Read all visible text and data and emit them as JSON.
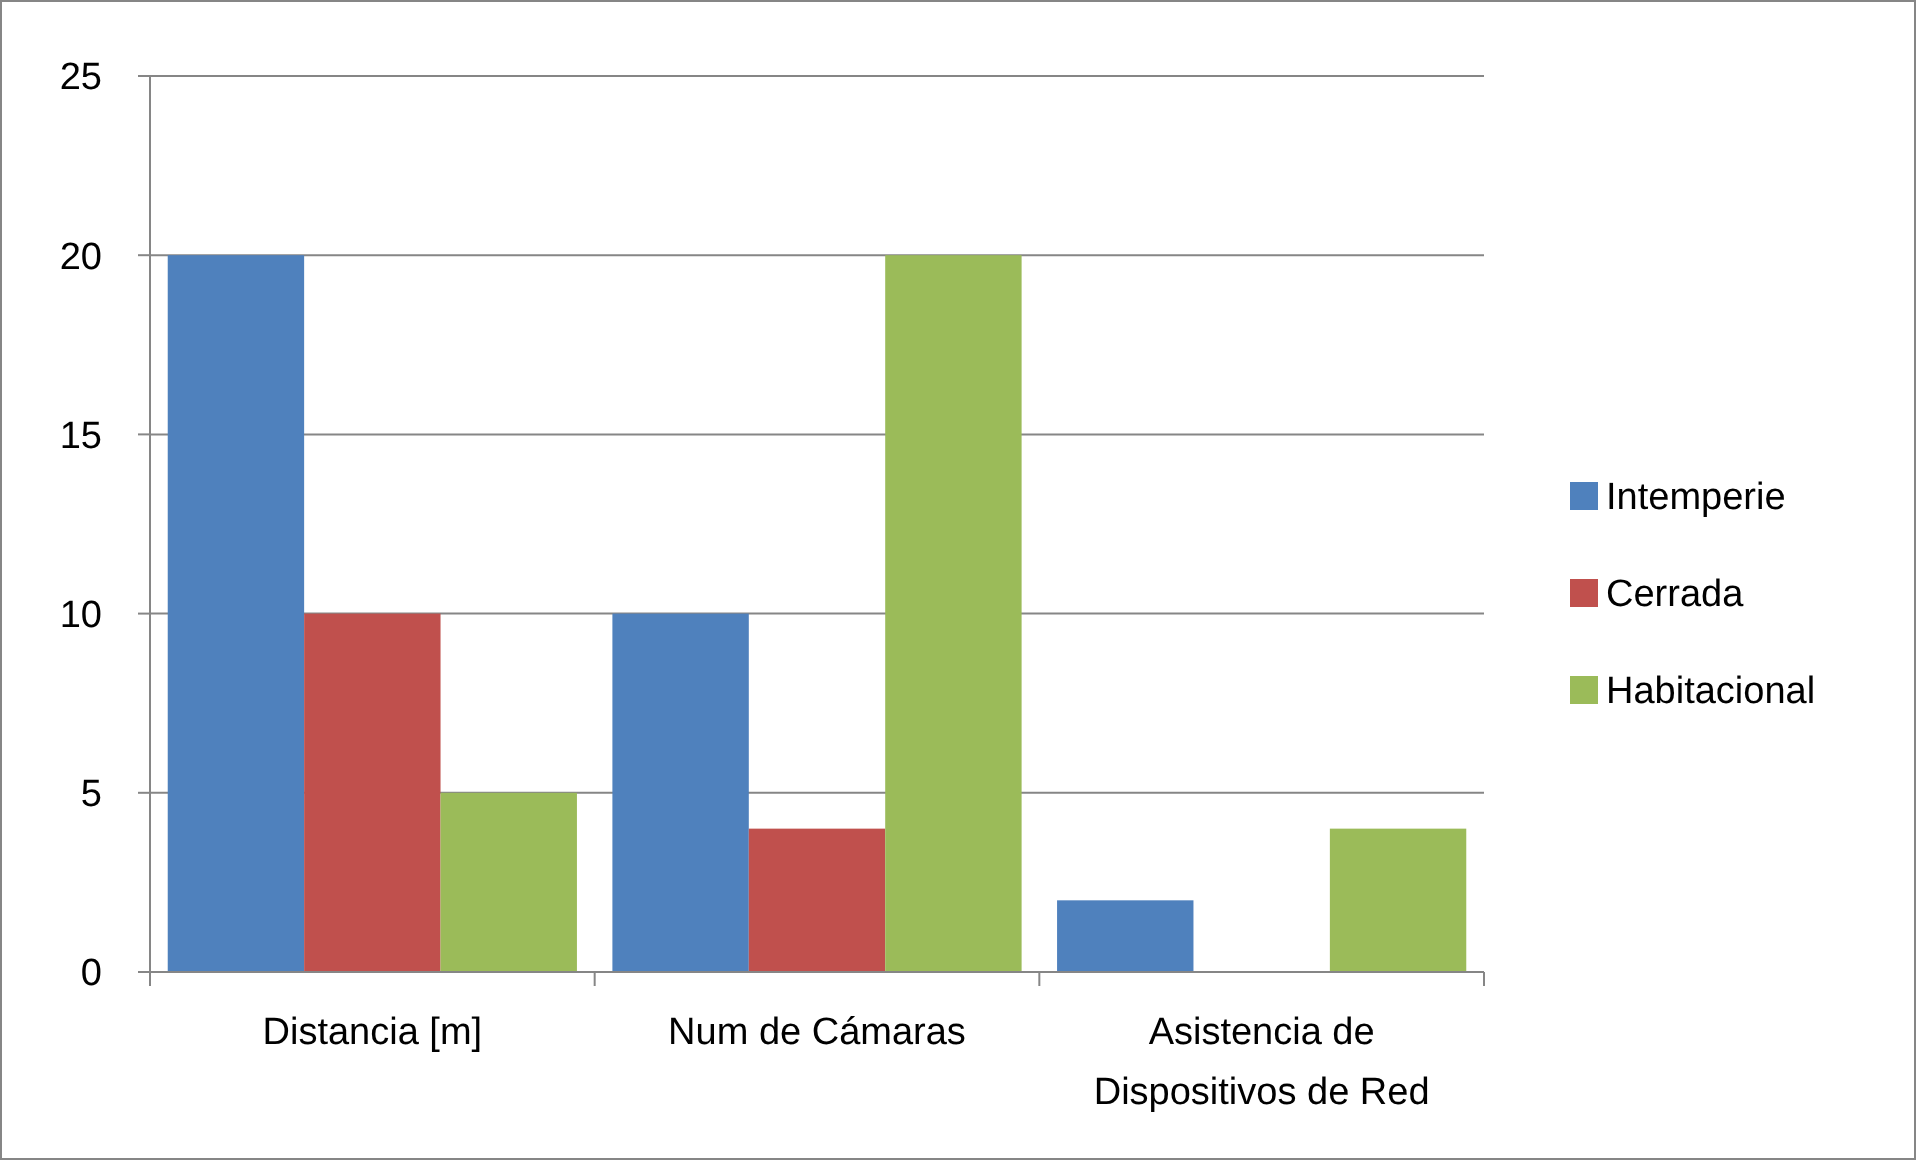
{
  "chart_data": {
    "type": "bar",
    "categories": [
      "Distancia [m]",
      "Num de Cámaras",
      "Asistencia de Dispositivos de Red"
    ],
    "series": [
      {
        "name": "Intemperie",
        "color": "#4f81bd",
        "values": [
          20,
          10,
          2
        ]
      },
      {
        "name": "Cerrada",
        "color": "#c0504d",
        "values": [
          10,
          4,
          0
        ]
      },
      {
        "name": "Habitacional",
        "color": "#9bbb59",
        "values": [
          5,
          20,
          4
        ]
      }
    ],
    "ylim": [
      0,
      25
    ],
    "yticks": [
      0,
      5,
      10,
      15,
      20,
      25
    ],
    "grid": "y",
    "legend": "right"
  }
}
